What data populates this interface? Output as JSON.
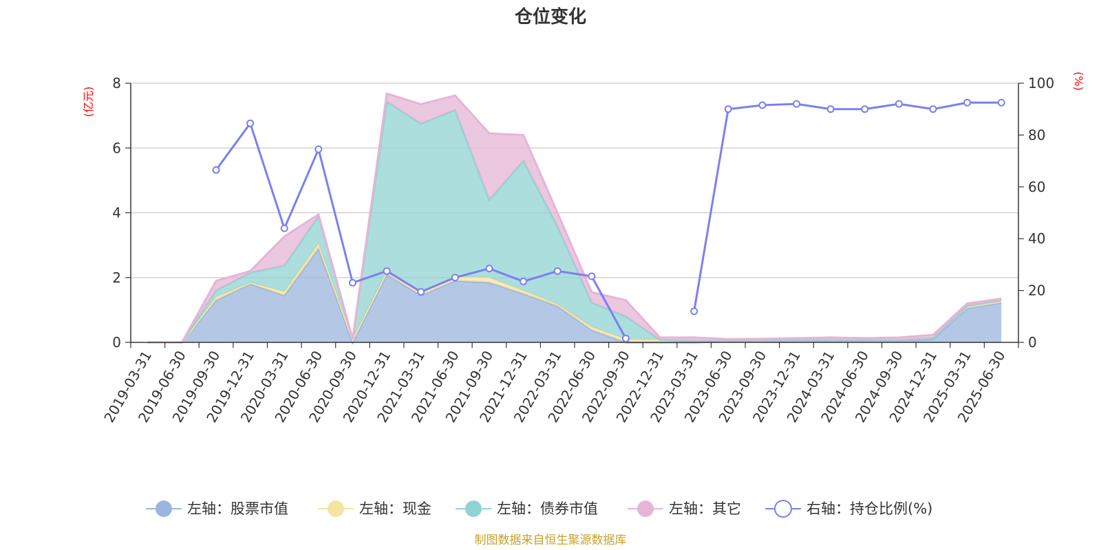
{
  "chart_data": {
    "type": "area",
    "title": "仓位变化",
    "left_axis_unit": "(亿元)",
    "right_axis_unit": "(%)",
    "source_note": "制图数据来自恒生聚源数据库",
    "categories": [
      "2019-03-31",
      "2019-06-30",
      "2019-09-30",
      "2019-12-31",
      "2020-03-31",
      "2020-06-30",
      "2020-09-30",
      "2020-12-31",
      "2021-03-31",
      "2021-06-30",
      "2021-09-30",
      "2021-12-31",
      "2022-03-31",
      "2022-06-30",
      "2022-09-30",
      "2022-12-31",
      "2023-03-31",
      "2023-06-30",
      "2023-09-30",
      "2023-12-31",
      "2024-03-31",
      "2024-06-30",
      "2024-09-30",
      "2024-12-31",
      "2025-03-31",
      "2025-06-30"
    ],
    "left_ylim": [
      0,
      8
    ],
    "left_ticks": [
      "0",
      "2",
      "4",
      "6",
      "8"
    ],
    "right_ylim": [
      0,
      100
    ],
    "right_ticks": [
      "0",
      "20",
      "40",
      "60",
      "80",
      "100"
    ],
    "grid": true,
    "legend_position": "bottom",
    "series": [
      {
        "name": "左轴：股票市值",
        "axis": "left",
        "kind": "stacked-area",
        "color": "#9bb5de",
        "values": [
          0,
          0,
          1.3,
          1.8,
          1.45,
          2.9,
          0,
          2.1,
          1.45,
          1.9,
          1.85,
          1.5,
          1.12,
          0.38,
          0,
          0,
          0,
          0.03,
          0.03,
          0.05,
          0.05,
          0.05,
          0.05,
          0.1,
          1.05,
          1.22
        ]
      },
      {
        "name": "左轴：现金",
        "axis": "left",
        "kind": "stacked-area",
        "color": "#f7e4a0",
        "values": [
          0,
          0,
          0.1,
          0.05,
          0.12,
          0.15,
          0.1,
          0.08,
          0.1,
          0.12,
          0.15,
          0.1,
          0.06,
          0.1,
          0.1,
          0.08,
          0.05,
          0.02,
          0.02,
          0.02,
          0.02,
          0.02,
          0.02,
          0.03,
          0.08,
          0.08
        ]
      },
      {
        "name": "左轴：债券市值",
        "axis": "left",
        "kind": "stacked-area",
        "color": "#90d3d3",
        "values": [
          0,
          0,
          0.2,
          0.3,
          0.8,
          0.85,
          0,
          5.25,
          5.2,
          5.15,
          2.4,
          4.0,
          2.4,
          0.75,
          0.7,
          0,
          0,
          0,
          0,
          0,
          0,
          0,
          0,
          0,
          0,
          0
        ]
      },
      {
        "name": "左轴：其它",
        "axis": "left",
        "kind": "stacked-area",
        "color": "#e6b4d6",
        "values": [
          0,
          0,
          0.3,
          0.05,
          0.9,
          0.05,
          0,
          0.25,
          0.6,
          0.45,
          2.05,
          0.8,
          0.42,
          0.32,
          0.5,
          0.07,
          0.1,
          0.05,
          0.06,
          0.06,
          0.08,
          0.06,
          0.08,
          0.1,
          0.07,
          0.05
        ]
      },
      {
        "name": "右轴：持仓比例(%)",
        "axis": "right",
        "kind": "line",
        "color": "#7b7ff0",
        "values": [
          null,
          null,
          66.5,
          84.5,
          44.0,
          74.5,
          23.0,
          27.5,
          19.5,
          25.0,
          28.5,
          23.5,
          27.5,
          25.5,
          1.5,
          null,
          12.0,
          90.0,
          91.5,
          92.0,
          90.0,
          90.0,
          92.0,
          90.0,
          92.5,
          92.5
        ]
      }
    ]
  }
}
